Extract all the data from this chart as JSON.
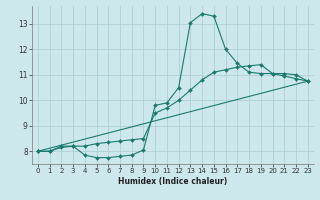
{
  "xlabel": "Humidex (Indice chaleur)",
  "background_color": "#cde8ed",
  "line_color": "#1a7a6e",
  "grid_color": "#aecfd6",
  "xlim": [
    -0.5,
    23.5
  ],
  "ylim": [
    7.5,
    13.7
  ],
  "xticks": [
    0,
    1,
    2,
    3,
    4,
    5,
    6,
    7,
    8,
    9,
    10,
    11,
    12,
    13,
    14,
    15,
    16,
    17,
    18,
    19,
    20,
    21,
    22,
    23
  ],
  "yticks": [
    8,
    9,
    10,
    11,
    12,
    13
  ],
  "series1_x": [
    0,
    1,
    2,
    3,
    4,
    5,
    6,
    7,
    8,
    9,
    10,
    11,
    12,
    13,
    14,
    15,
    16,
    17,
    18,
    19,
    20,
    21,
    22,
    23
  ],
  "series1_y": [
    8.0,
    8.0,
    8.2,
    8.2,
    7.85,
    7.75,
    7.75,
    7.8,
    7.85,
    8.05,
    9.8,
    9.9,
    10.5,
    13.05,
    13.4,
    13.3,
    12.0,
    11.45,
    11.1,
    11.05,
    11.05,
    10.95,
    10.85,
    10.75
  ],
  "series2_x": [
    0,
    1,
    2,
    3,
    4,
    5,
    6,
    7,
    8,
    9,
    10,
    11,
    12,
    13,
    14,
    15,
    16,
    17,
    18,
    19,
    20,
    21,
    22,
    23
  ],
  "series2_y": [
    8.0,
    8.0,
    8.15,
    8.2,
    8.2,
    8.3,
    8.35,
    8.4,
    8.45,
    8.5,
    9.5,
    9.7,
    10.0,
    10.4,
    10.8,
    11.1,
    11.2,
    11.3,
    11.35,
    11.4,
    11.05,
    11.05,
    11.0,
    10.75
  ],
  "series3_x": [
    0,
    23
  ],
  "series3_y": [
    8.0,
    10.75
  ],
  "xlabel_fontsize": 5.5,
  "tick_fontsize": 5.0,
  "linewidth": 0.8,
  "markersize": 2.0
}
